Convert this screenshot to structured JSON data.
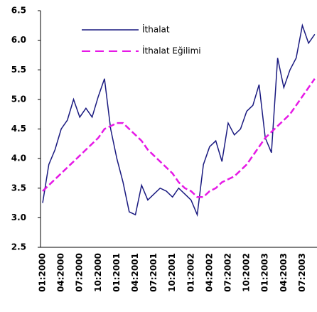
{
  "chart_data": {
    "type": "line",
    "categories": [
      "01:2000",
      null,
      null,
      "04:2000",
      null,
      null,
      "07:2000",
      null,
      null,
      "10:2000",
      null,
      null,
      "01:2001",
      null,
      null,
      "04:2001",
      null,
      null,
      "07:2001",
      null,
      null,
      "10:2001",
      null,
      null,
      "01:2002",
      null,
      null,
      "04:2002",
      null,
      null,
      "07:2002",
      null,
      null,
      "10:2002",
      null,
      null,
      "01:2003",
      null,
      null,
      "04:2003",
      null,
      null,
      "07:2003",
      null,
      null
    ],
    "series": [
      {
        "name": "İthalat",
        "color": "#1a1a80",
        "dashed": false,
        "values": [
          3.25,
          3.9,
          4.15,
          4.5,
          4.65,
          5.0,
          4.7,
          4.85,
          4.7,
          5.05,
          5.35,
          4.5,
          4.0,
          3.6,
          3.1,
          3.05,
          3.55,
          3.3,
          3.4,
          3.5,
          3.45,
          3.35,
          3.5,
          3.4,
          3.3,
          3.05,
          3.9,
          4.2,
          4.3,
          3.95,
          4.6,
          4.4,
          4.5,
          4.8,
          4.9,
          5.25,
          4.35,
          4.1,
          5.7,
          5.2,
          5.5,
          5.7,
          6.25,
          5.95,
          6.1
        ]
      },
      {
        "name": "İthalat Eğilimi",
        "color": "#e619e6",
        "dashed": true,
        "values": [
          3.45,
          3.55,
          3.65,
          3.75,
          3.85,
          3.95,
          4.05,
          4.15,
          4.25,
          4.35,
          4.5,
          4.55,
          4.6,
          4.6,
          4.5,
          4.4,
          4.3,
          4.15,
          4.05,
          3.95,
          3.85,
          3.75,
          3.6,
          3.5,
          3.45,
          3.35,
          3.35,
          3.45,
          3.5,
          3.6,
          3.65,
          3.7,
          3.8,
          3.9,
          4.05,
          4.2,
          4.35,
          4.45,
          4.55,
          4.65,
          4.75,
          4.9,
          5.05,
          5.2,
          5.35
        ]
      }
    ],
    "ylim": [
      2.5,
      6.5
    ],
    "yticks": [
      2.5,
      {
        "value": 3,
        "label": "3.0"
      },
      3.5,
      {
        "value": 4,
        "label": "4.0"
      },
      4.5,
      {
        "value": 5,
        "label": "5.0"
      },
      5.5,
      {
        "value": 6,
        "label": "6.0"
      },
      6.5
    ],
    "grid": false
  }
}
